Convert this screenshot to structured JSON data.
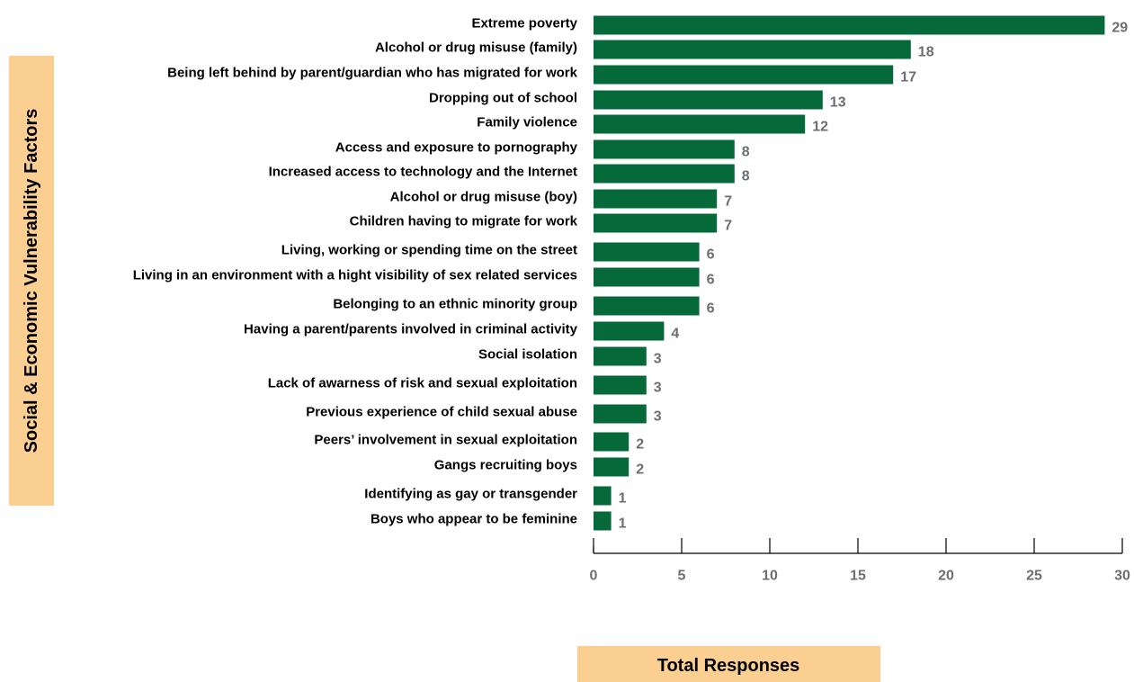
{
  "chart_data": {
    "type": "bar",
    "orientation": "horizontal",
    "categories": [
      "Extreme poverty",
      "Alcohol or drug misuse (family)",
      "Being left behind by parent/guardian who has migrated for work",
      "Dropping out of school",
      "Family violence",
      "Access and exposure to pornography",
      "Increased access to technology and the Internet",
      "Alcohol or drug misuse (boy)",
      "Children having to migrate for work",
      "Living, working or spending time on the street",
      "Living in an environment with a hight visibility of sex related services",
      "Belonging to an ethnic minority group",
      "Having a parent/parents involved in criminal activity",
      "Social isolation",
      "Lack of awarness of risk and sexual exploitation",
      "Previous experience of child sexual abuse",
      "Peers’ involvement in sexual exploitation",
      "Gangs recruiting boys",
      "Identifying as gay or transgender",
      "Boys who appear to be feminine"
    ],
    "values": [
      29,
      18,
      17,
      13,
      12,
      8,
      8,
      7,
      7,
      6,
      6,
      6,
      4,
      3,
      3,
      3,
      2,
      2,
      1,
      1
    ],
    "xlabel": "Total Responses",
    "ylabel": "Social & Economic Vulnerability Factors",
    "xlim": [
      0,
      30
    ],
    "xticks": [
      0,
      5,
      10,
      15,
      20,
      25,
      30
    ],
    "grid": false,
    "data_labels": true,
    "colors": {
      "bar": "#05693a",
      "axis_title_background": "#fbcf92",
      "value_label": "#6d6e71",
      "tick_label": "#6d6e71"
    }
  }
}
